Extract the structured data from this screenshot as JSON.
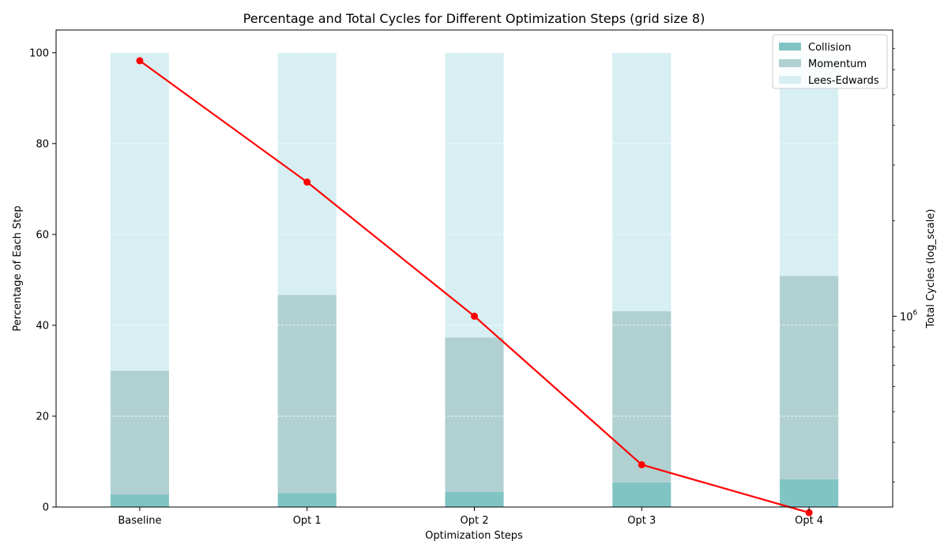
{
  "chart_data": {
    "type": "bar",
    "title": "Percentage and Total Cycles for Different Optimization Steps (grid size 8)",
    "xlabel": "Optimization Steps",
    "ylabel": "Percentage of Each Step",
    "y2label": "Total Cycles (log_scale)",
    "categories": [
      "Baseline",
      "Opt 1",
      "Opt 2",
      "Opt 3",
      "Opt 4"
    ],
    "stacked": true,
    "ylim": [
      0,
      105
    ],
    "yticks": [
      0,
      20,
      40,
      60,
      80,
      100
    ],
    "y2_scale": "log",
    "y2lim": [
      250000,
      8000000
    ],
    "y2tick_major": {
      "value": 1000000,
      "base": "10",
      "exp": "6"
    },
    "y2tick_minor": [
      300000,
      400000,
      500000,
      600000,
      700000,
      800000,
      900000,
      2000000,
      3000000,
      4000000,
      5000000,
      6000000,
      7000000
    ],
    "series": [
      {
        "name": "Collision",
        "color": "#80c4c4",
        "values": [
          2.8,
          3.1,
          3.3,
          5.4,
          6.1
        ]
      },
      {
        "name": "Momentum",
        "color": "#b0d0d1",
        "values": [
          27.2,
          43.6,
          34.0,
          37.7,
          44.8
        ]
      },
      {
        "name": "Lees-Edwards",
        "color": "#d7eff3",
        "values": [
          70.0,
          53.3,
          62.7,
          56.9,
          49.1
        ]
      }
    ],
    "line": {
      "color": "#ff0000",
      "values": [
        6400000,
        2650000,
        1000000,
        340000,
        240000
      ]
    },
    "grid": "horizontal-dashed",
    "legend_position": "top-right"
  }
}
